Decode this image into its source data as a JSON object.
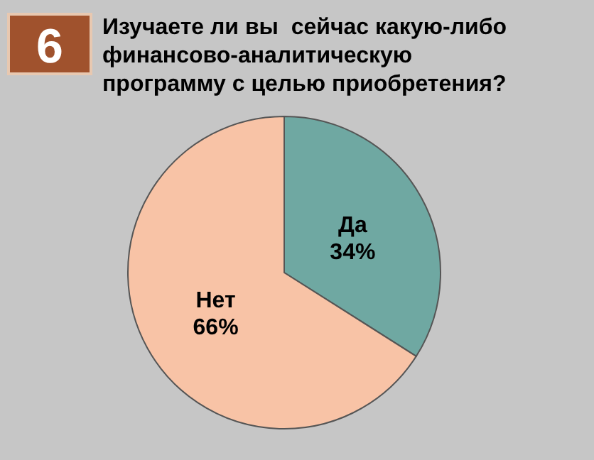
{
  "chart_data": {
    "type": "pie",
    "title": "Изучаете ли вы  сейчас какую-либо\nфинансово-аналитическую\nпрограмму с целью приобретения?",
    "annotations": [
      "6"
    ],
    "categories": [
      "Да",
      "Нет"
    ],
    "values": [
      34,
      66
    ],
    "value_labels": [
      "34%",
      "66%"
    ],
    "colors": [
      "#6fa8a2",
      "#f8c3a6"
    ]
  }
}
